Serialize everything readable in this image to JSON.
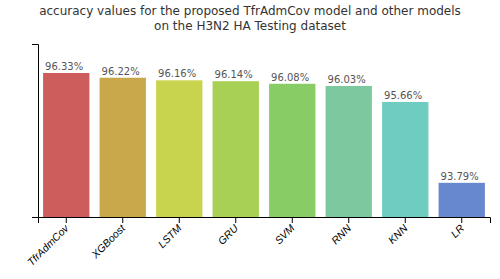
{
  "chart_data": {
    "type": "bar",
    "title": "accuracy values for the proposed TfrAdmCov model and other models\non the H3N2 HA Testing dataset",
    "categories": [
      "TfrAdmCov",
      "XGBoost",
      "LSTM",
      "GRU",
      "SVM",
      "RNN",
      "KNN",
      "LR"
    ],
    "values": [
      96.33,
      96.22,
      96.16,
      96.14,
      96.08,
      96.03,
      95.66,
      93.79
    ],
    "value_labels": [
      "96.33%",
      "96.22%",
      "96.16%",
      "96.14%",
      "96.08%",
      "96.03%",
      "95.66%",
      "93.79%"
    ],
    "colors": [
      "#cd5c5c",
      "#c8a84b",
      "#c8d44e",
      "#a8d055",
      "#88cc66",
      "#7ec8a0",
      "#6eccc0",
      "#6688cc"
    ],
    "ylim": [
      93.0,
      97.0
    ],
    "yticks": [],
    "data_labels": true,
    "tick_labels": "x",
    "grid": false
  }
}
